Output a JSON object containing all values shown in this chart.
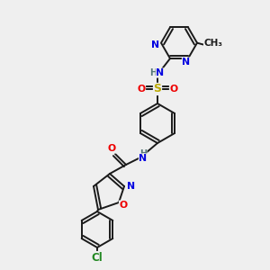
{
  "bg_color": "#efefef",
  "bond_color": "#1a1a1a",
  "colors": {
    "N": "#0000e0",
    "O": "#ee0000",
    "S": "#bbaa00",
    "Cl": "#228822",
    "H": "#557777",
    "C": "#1a1a1a"
  },
  "lw": 1.4,
  "fs": 7.8
}
